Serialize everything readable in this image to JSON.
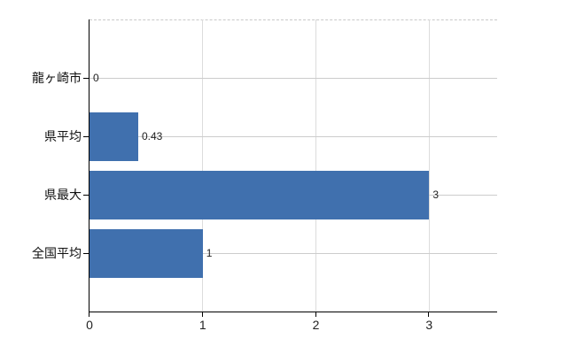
{
  "chart_data": {
    "type": "bar",
    "orientation": "horizontal",
    "title": "",
    "xlabel": "",
    "ylabel": "",
    "categories": [
      "龍ヶ崎市",
      "県平均",
      "県最大",
      "全国平均"
    ],
    "values": [
      0,
      0.43,
      3,
      1
    ],
    "value_labels": [
      "0",
      "0.43",
      "3",
      "1"
    ],
    "xticks": [
      "0",
      "1",
      "2",
      "3"
    ],
    "xtick_values": [
      0,
      1,
      2,
      3
    ],
    "xlim": [
      0,
      3.6
    ],
    "grid": true,
    "legend": false,
    "colors": {
      "bar": "#4070ae",
      "horizontal_gridline": "#cccccc",
      "vertical_gridline": "#dcdcdc",
      "top_gridline": "#c8c8c8",
      "axis": "#000000",
      "text": "#222222"
    }
  }
}
